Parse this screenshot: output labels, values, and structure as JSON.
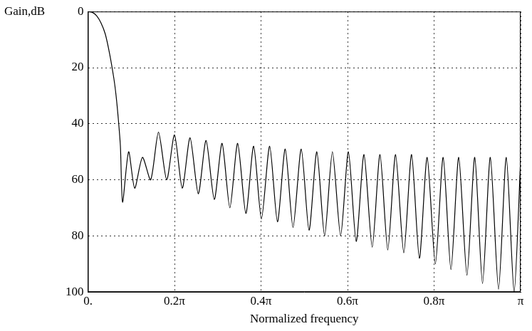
{
  "chart_data": {
    "type": "line",
    "ylabel": "Gain,dB",
    "xlabel": "Normalized frequency",
    "color": "#000000",
    "grid": true,
    "xlim": [
      0,
      1
    ],
    "xticks": [
      {
        "value": 0,
        "label": "0."
      },
      {
        "value": 0.2,
        "label": "0.2π"
      },
      {
        "value": 0.4,
        "label": "0.4π"
      },
      {
        "value": 0.6,
        "label": "0.6π"
      },
      {
        "value": 0.8,
        "label": "0.8π"
      },
      {
        "value": 1,
        "label": "π"
      }
    ],
    "ylim": [
      100,
      0
    ],
    "yticks": [
      0,
      20,
      40,
      60,
      80,
      100
    ],
    "x": [
      0,
      0.01,
      0.02,
      0.03,
      0.04,
      0.05,
      0.06,
      0.065,
      0.07,
      0.075,
      0.08,
      0.094,
      0.108,
      0.126,
      0.145,
      0.163,
      0.182,
      0.2,
      0.218,
      0.236,
      0.255,
      0.273,
      0.292,
      0.31,
      0.328,
      0.346,
      0.365,
      0.383,
      0.401,
      0.42,
      0.438,
      0.456,
      0.474,
      0.493,
      0.511,
      0.529,
      0.547,
      0.565,
      0.584,
      0.602,
      0.62,
      0.638,
      0.657,
      0.675,
      0.693,
      0.711,
      0.73,
      0.748,
      0.766,
      0.784,
      0.803,
      0.821,
      0.839,
      0.857,
      0.876,
      0.894,
      0.912,
      0.93,
      0.949,
      0.967,
      0.985,
      1.0
    ],
    "values": [
      0,
      0.3,
      1.5,
      4,
      8,
      15,
      24,
      30,
      38,
      48,
      68,
      50,
      63,
      52,
      60,
      43,
      60,
      44,
      63,
      45,
      65,
      46,
      67,
      47,
      70,
      47,
      72,
      48,
      74,
      48,
      75,
      49,
      77,
      49,
      78,
      50,
      80,
      50,
      80,
      50,
      82,
      51,
      84,
      51,
      85,
      51,
      86,
      51,
      88,
      52,
      90,
      52,
      92,
      52,
      94,
      52,
      97,
      52,
      99,
      52,
      100,
      53
    ]
  }
}
